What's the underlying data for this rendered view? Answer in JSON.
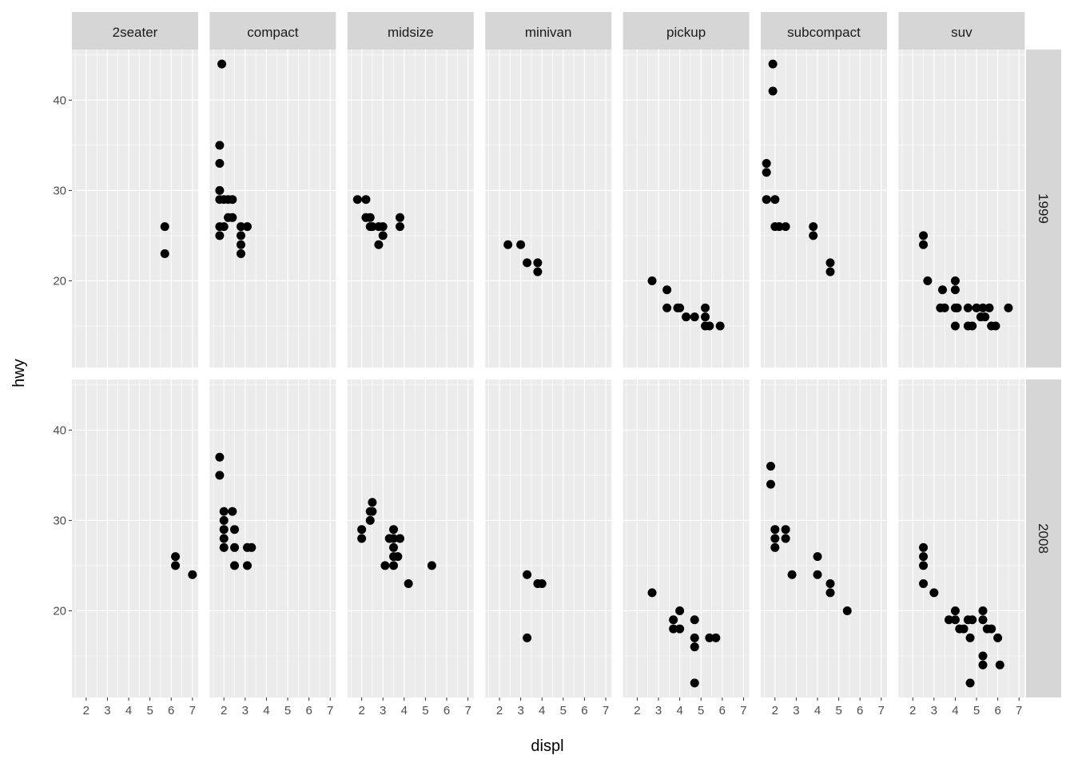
{
  "chart_data": {
    "type": "scatter",
    "xlabel": "displ",
    "ylabel": "hwy",
    "xlim": [
      1.33,
      7.27
    ],
    "ylim": [
      10.4,
      45.6
    ],
    "x_ticks": [
      2,
      3,
      4,
      5,
      6,
      7
    ],
    "y_ticks": [
      20,
      30,
      40
    ],
    "col_facets": [
      "2seater",
      "compact",
      "midsize",
      "minivan",
      "pickup",
      "subcompact",
      "suv"
    ],
    "row_facets": [
      "1999",
      "2008"
    ],
    "grid": true,
    "colors": {
      "panel": "#EBEBEB",
      "strip": "#D6D6D6",
      "point": "#000000",
      "grid": "#FFFFFF"
    },
    "panels": [
      {
        "class": "2seater",
        "year": "1999",
        "points": [
          [
            5.7,
            26
          ],
          [
            5.7,
            23
          ]
        ]
      },
      {
        "class": "compact",
        "year": "1999",
        "points": [
          [
            1.9,
            44
          ],
          [
            1.8,
            35
          ],
          [
            1.8,
            33
          ],
          [
            1.8,
            30
          ],
          [
            1.8,
            29
          ],
          [
            2.0,
            29
          ],
          [
            2.2,
            29
          ],
          [
            2.4,
            29
          ],
          [
            2.2,
            27
          ],
          [
            2.4,
            27
          ],
          [
            1.8,
            26
          ],
          [
            2.0,
            26
          ],
          [
            2.8,
            26
          ],
          [
            3.1,
            26
          ],
          [
            1.8,
            25
          ],
          [
            2.8,
            25
          ],
          [
            2.8,
            24
          ],
          [
            2.8,
            23
          ]
        ]
      },
      {
        "class": "midsize",
        "year": "1999",
        "points": [
          [
            1.8,
            29
          ],
          [
            2.2,
            29
          ],
          [
            2.2,
            27
          ],
          [
            2.4,
            27
          ],
          [
            2.4,
            26
          ],
          [
            2.5,
            26
          ],
          [
            2.8,
            26
          ],
          [
            3.0,
            26
          ],
          [
            3.8,
            26
          ],
          [
            3.8,
            27
          ],
          [
            3.0,
            25
          ],
          [
            2.8,
            24
          ]
        ]
      },
      {
        "class": "minivan",
        "year": "1999",
        "points": [
          [
            2.4,
            24
          ],
          [
            3.0,
            24
          ],
          [
            3.3,
            22
          ],
          [
            3.8,
            22
          ],
          [
            3.8,
            21
          ]
        ]
      },
      {
        "class": "pickup",
        "year": "1999",
        "points": [
          [
            2.7,
            20
          ],
          [
            3.4,
            19
          ],
          [
            3.4,
            17
          ],
          [
            3.9,
            17
          ],
          [
            4.0,
            17
          ],
          [
            4.3,
            16
          ],
          [
            4.7,
            16
          ],
          [
            5.2,
            17
          ],
          [
            5.2,
            16
          ],
          [
            5.2,
            15
          ],
          [
            5.4,
            15
          ],
          [
            5.9,
            15
          ]
        ]
      },
      {
        "class": "subcompact",
        "year": "1999",
        "points": [
          [
            1.9,
            44
          ],
          [
            1.9,
            41
          ],
          [
            1.6,
            33
          ],
          [
            1.6,
            32
          ],
          [
            1.6,
            29
          ],
          [
            2.0,
            29
          ],
          [
            2.0,
            26
          ],
          [
            2.2,
            26
          ],
          [
            2.5,
            26
          ],
          [
            3.8,
            26
          ],
          [
            3.8,
            25
          ],
          [
            4.6,
            22
          ],
          [
            4.6,
            21
          ]
        ]
      },
      {
        "class": "suv",
        "year": "1999",
        "points": [
          [
            2.5,
            25
          ],
          [
            2.5,
            24
          ],
          [
            2.7,
            20
          ],
          [
            3.4,
            19
          ],
          [
            3.3,
            17
          ],
          [
            3.5,
            17
          ],
          [
            4.0,
            17
          ],
          [
            4.1,
            17
          ],
          [
            4.0,
            20
          ],
          [
            4.0,
            19
          ],
          [
            4.0,
            15
          ],
          [
            4.6,
            15
          ],
          [
            4.8,
            15
          ],
          [
            4.6,
            17
          ],
          [
            5.0,
            17
          ],
          [
            5.3,
            17
          ],
          [
            5.6,
            17
          ],
          [
            5.2,
            16
          ],
          [
            5.4,
            16
          ],
          [
            5.7,
            15
          ],
          [
            5.9,
            15
          ],
          [
            6.5,
            17
          ]
        ]
      },
      {
        "class": "2seater",
        "year": "2008",
        "points": [
          [
            6.2,
            26
          ],
          [
            6.2,
            25
          ],
          [
            7.0,
            24
          ]
        ]
      },
      {
        "class": "compact",
        "year": "2008",
        "points": [
          [
            1.8,
            37
          ],
          [
            1.8,
            35
          ],
          [
            2.0,
            31
          ],
          [
            2.4,
            31
          ],
          [
            2.0,
            30
          ],
          [
            2.0,
            29
          ],
          [
            2.5,
            29
          ],
          [
            2.0,
            28
          ],
          [
            2.0,
            27
          ],
          [
            2.5,
            27
          ],
          [
            3.1,
            27
          ],
          [
            3.3,
            27
          ],
          [
            2.5,
            25
          ],
          [
            3.1,
            25
          ]
        ]
      },
      {
        "class": "midsize",
        "year": "2008",
        "points": [
          [
            2.0,
            29
          ],
          [
            2.0,
            28
          ],
          [
            2.5,
            32
          ],
          [
            2.4,
            31
          ],
          [
            2.5,
            31
          ],
          [
            2.4,
            30
          ],
          [
            3.5,
            29
          ],
          [
            3.3,
            28
          ],
          [
            3.5,
            28
          ],
          [
            3.8,
            28
          ],
          [
            3.5,
            27
          ],
          [
            3.5,
            26
          ],
          [
            3.7,
            26
          ],
          [
            3.1,
            25
          ],
          [
            3.5,
            25
          ],
          [
            4.2,
            23
          ],
          [
            5.3,
            25
          ]
        ]
      },
      {
        "class": "minivan",
        "year": "2008",
        "points": [
          [
            3.3,
            24
          ],
          [
            3.3,
            17
          ],
          [
            3.8,
            23
          ],
          [
            4.0,
            23
          ]
        ]
      },
      {
        "class": "pickup",
        "year": "2008",
        "points": [
          [
            2.7,
            22
          ],
          [
            3.7,
            19
          ],
          [
            4.0,
            20
          ],
          [
            3.7,
            18
          ],
          [
            4.0,
            18
          ],
          [
            4.7,
            19
          ],
          [
            4.7,
            17
          ],
          [
            5.4,
            17
          ],
          [
            5.7,
            17
          ],
          [
            4.7,
            16
          ],
          [
            4.7,
            12
          ]
        ]
      },
      {
        "class": "subcompact",
        "year": "2008",
        "points": [
          [
            1.8,
            36
          ],
          [
            1.8,
            34
          ],
          [
            2.0,
            29
          ],
          [
            2.5,
            29
          ],
          [
            2.0,
            28
          ],
          [
            2.5,
            28
          ],
          [
            2.0,
            27
          ],
          [
            2.8,
            24
          ],
          [
            4.0,
            26
          ],
          [
            4.0,
            24
          ],
          [
            4.6,
            23
          ],
          [
            4.6,
            22
          ],
          [
            5.4,
            20
          ]
        ]
      },
      {
        "class": "suv",
        "year": "2008",
        "points": [
          [
            2.5,
            27
          ],
          [
            2.5,
            26
          ],
          [
            2.5,
            25
          ],
          [
            2.5,
            23
          ],
          [
            3.0,
            22
          ],
          [
            3.7,
            19
          ],
          [
            4.0,
            19
          ],
          [
            4.0,
            20
          ],
          [
            4.2,
            18
          ],
          [
            4.4,
            18
          ],
          [
            4.6,
            19
          ],
          [
            4.8,
            19
          ],
          [
            4.7,
            17
          ],
          [
            4.7,
            12
          ],
          [
            5.3,
            20
          ],
          [
            5.3,
            19
          ],
          [
            5.5,
            18
          ],
          [
            5.7,
            18
          ],
          [
            6.0,
            17
          ],
          [
            5.3,
            15
          ],
          [
            5.3,
            14
          ],
          [
            6.1,
            14
          ]
        ]
      }
    ]
  }
}
